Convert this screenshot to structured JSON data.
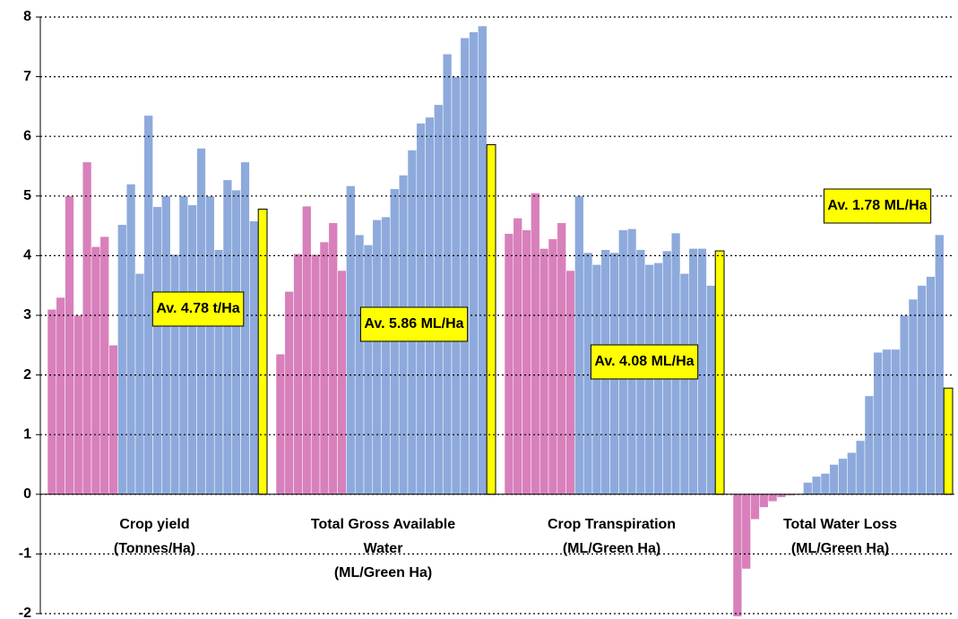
{
  "chart_data": {
    "type": "bar",
    "categories": [
      [
        "Crop yield",
        "(Tonnes/Ha)"
      ],
      [
        "Total Gross Available",
        "Water",
        "(ML/Green Ha)"
      ],
      [
        "Crop Transpiration",
        "(ML/Green Ha)"
      ],
      [
        "Total Water Loss",
        "(ML/Green Ha)"
      ]
    ],
    "series": [
      {
        "color": "#d880bb",
        "values": [
          [
            3.1,
            3.3,
            5.0,
            3.0,
            5.57,
            4.15,
            4.32,
            2.5
          ],
          [
            2.35,
            3.4,
            4.03,
            4.83,
            4.02,
            4.23,
            4.55,
            3.75
          ],
          [
            4.37,
            4.63,
            4.43,
            5.05,
            4.12,
            4.28,
            4.55,
            3.75
          ],
          [
            -2.05,
            -1.25,
            -0.42,
            -0.22,
            -0.12,
            -0.05,
            -0.02,
            -0.01
          ]
        ]
      },
      {
        "color": "#8eaadc",
        "values": [
          [
            4.52,
            5.2,
            3.7,
            6.35,
            4.82,
            5.0,
            4.02,
            5.0,
            4.85,
            5.8,
            5.0,
            4.1,
            5.27,
            5.1,
            5.57,
            4.58
          ],
          [
            5.17,
            4.35,
            4.18,
            4.6,
            4.65,
            5.12,
            5.35,
            5.77,
            6.22,
            6.32,
            6.53,
            7.38,
            7.0,
            7.65,
            7.75,
            7.85
          ],
          [
            5.0,
            4.05,
            3.85,
            4.1,
            4.05,
            4.43,
            4.45,
            4.1,
            3.85,
            3.88,
            4.08,
            4.38,
            3.7,
            4.12,
            4.12,
            3.5
          ],
          [
            0.2,
            0.3,
            0.35,
            0.5,
            0.6,
            0.7,
            0.9,
            1.65,
            2.38,
            2.43,
            2.43,
            3.0,
            3.27,
            3.5,
            3.65,
            4.35
          ]
        ]
      },
      {
        "color": "#ffff00",
        "values": [
          4.78,
          5.86,
          4.08,
          1.78
        ],
        "value_labels": [
          "Av. 4.78 t/Ha",
          "Av. 5.86 ML/Ha",
          "Av. 4.08 ML/Ha",
          "Av. 1.78 ML/Ha"
        ]
      }
    ],
    "ylim": [
      -2,
      8
    ],
    "yticks": [
      -2,
      -1,
      0,
      1,
      2,
      3,
      4,
      5,
      6,
      7,
      8
    ],
    "grid": true
  }
}
